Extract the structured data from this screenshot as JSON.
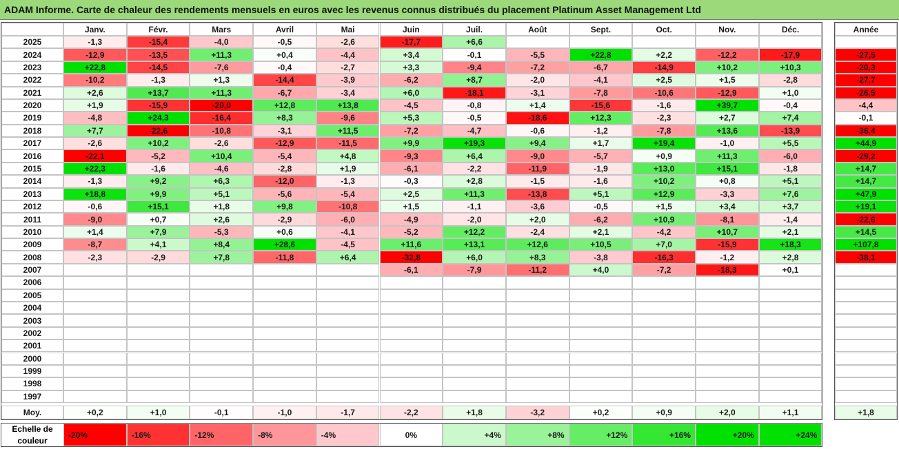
{
  "title": "ADAM Informe. Carte de chaleur des rendements mensuels en euros avec les revenus connus distribués du placement Platinum Asset Management Ltd",
  "colors": {
    "negative_strong": "#ff0000",
    "positive_strong": "#00dd00",
    "title_bg": "#9bd97a"
  },
  "chart_data": {
    "type": "heatmap",
    "columns": [
      "Janv.",
      "Févr.",
      "Mars",
      "Avril",
      "Mai",
      "Juin",
      "Juil.",
      "Août",
      "Sept.",
      "Oct.",
      "Nov.",
      "Déc."
    ],
    "year_column_label": "Année",
    "avg_row_label": "Moy.",
    "rows": [
      {
        "year": "2025",
        "values": [
          "-1,3",
          "-15,4",
          "-4,0",
          "-0,5",
          "-2,6",
          "-17,7",
          "+6,6",
          "",
          "",
          "",
          "",
          ""
        ],
        "annual": ""
      },
      {
        "year": "2024",
        "values": [
          "-12,9",
          "-13,5",
          "+11,3",
          "+0,4",
          "-4,4",
          "+3,4",
          "-0,1",
          "-5,5",
          "+22,8",
          "+2,2",
          "-12,2",
          "-17,9"
        ],
        "annual": "-27,5"
      },
      {
        "year": "2023",
        "values": [
          "+22,8",
          "-14,5",
          "-7,6",
          "-0,4",
          "-2,7",
          "+3,3",
          "-9,4",
          "-7,2",
          "-6,7",
          "-14,9",
          "+10,2",
          "+10,3"
        ],
        "annual": "-20,3"
      },
      {
        "year": "2022",
        "values": [
          "-10,2",
          "-1,3",
          "+1,3",
          "-14,4",
          "-3,9",
          "-6,2",
          "+8,7",
          "-2,0",
          "-4,1",
          "+2,5",
          "+1,5",
          "-2,8"
        ],
        "annual": "-27,7"
      },
      {
        "year": "2021",
        "values": [
          "+2,6",
          "+13,7",
          "+11,3",
          "-6,7",
          "-3,4",
          "+6,0",
          "-18,1",
          "-3,1",
          "-7,8",
          "-10,6",
          "-12,9",
          "+1,0"
        ],
        "annual": "-26,5"
      },
      {
        "year": "2020",
        "values": [
          "+1,9",
          "-15,9",
          "-20,0",
          "+12,8",
          "+13,8",
          "-4,5",
          "-0,8",
          "+1,4",
          "-15,6",
          "-1,6",
          "+39,7",
          "-0,4"
        ],
        "annual": "-4,4"
      },
      {
        "year": "2019",
        "values": [
          "-4,8",
          "+24,3",
          "-16,4",
          "+8,3",
          "-9,6",
          "+5,3",
          "-0,5",
          "-18,6",
          "+12,3",
          "-2,3",
          "+2,7",
          "+7,4"
        ],
        "annual": "-0,1"
      },
      {
        "year": "2018",
        "values": [
          "+7,7",
          "-22,6",
          "-10,8",
          "-3,1",
          "+11,5",
          "-7,2",
          "-4,7",
          "-0,6",
          "-1,2",
          "-7,8",
          "+13,6",
          "-13,9"
        ],
        "annual": "-36,4"
      },
      {
        "year": "2017",
        "values": [
          "-2,6",
          "+10,2",
          "-2,6",
          "-12,9",
          "-11,5",
          "+9,9",
          "+19,3",
          "+9,4",
          "+1,7",
          "+19,4",
          "-1,0",
          "+5,5"
        ],
        "annual": "+44,9"
      },
      {
        "year": "2016",
        "values": [
          "-22,1",
          "-5,2",
          "+10,4",
          "-5,4",
          "+4,8",
          "-9,3",
          "+6,4",
          "-9,0",
          "-5,7",
          "+0,9",
          "+11,3",
          "-6,0"
        ],
        "annual": "-29,2"
      },
      {
        "year": "2015",
        "values": [
          "+22,3",
          "-1,6",
          "-4,6",
          "-2,8",
          "+1,9",
          "-6,1",
          "-2,2",
          "-11,9",
          "-1,9",
          "+13,0",
          "+15,1",
          "-1,8"
        ],
        "annual": "+14,7"
      },
      {
        "year": "2014",
        "values": [
          "-1,3",
          "+9,2",
          "+6,3",
          "-12,0",
          "-1,3",
          "-0,3",
          "+2,8",
          "-1,5",
          "-1,6",
          "+10,2",
          "+0,8",
          "+5,1"
        ],
        "annual": "+14,7"
      },
      {
        "year": "2013",
        "values": [
          "+18,8",
          "+9,9",
          "+5,1",
          "-5,6",
          "-5,4",
          "+2,5",
          "+11,3",
          "-13,8",
          "+5,1",
          "+12,9",
          "-3,3",
          "+7,6"
        ],
        "annual": "+47,9"
      },
      {
        "year": "2012",
        "values": [
          "-0,6",
          "+15,1",
          "+1,8",
          "+9,8",
          "-10,8",
          "+1,5",
          "-1,1",
          "-3,6",
          "-0,5",
          "+1,5",
          "+3,4",
          "+3,7"
        ],
        "annual": "+19,1"
      },
      {
        "year": "2011",
        "values": [
          "-9,0",
          "+0,7",
          "+2,6",
          "-2,9",
          "-6,0",
          "-4,9",
          "-2,0",
          "+2,0",
          "-6,2",
          "+10,9",
          "-8,1",
          "-1,4"
        ],
        "annual": "-22,6"
      },
      {
        "year": "2010",
        "values": [
          "+1,4",
          "+7,9",
          "-5,3",
          "+0,6",
          "-4,1",
          "-5,2",
          "+12,2",
          "-2,4",
          "+2,1",
          "-4,2",
          "+10,7",
          "+2,1"
        ],
        "annual": "+14,5"
      },
      {
        "year": "2009",
        "values": [
          "-8,7",
          "+4,1",
          "+8,4",
          "+28,6",
          "-4,5",
          "+11,6",
          "+13,1",
          "+12,6",
          "+10,5",
          "+7,0",
          "-15,9",
          "+18,3"
        ],
        "annual": "+107,8"
      },
      {
        "year": "2008",
        "values": [
          "-2,3",
          "-2,9",
          "+7,8",
          "-11,8",
          "+6,4",
          "-32,8",
          "+6,0",
          "+8,3",
          "-3,8",
          "-16,3",
          "-1,2",
          "+2,8"
        ],
        "annual": "-38,1"
      },
      {
        "year": "2007",
        "values": [
          "",
          "",
          "",
          "",
          "",
          "-6,1",
          "-7,9",
          "-11,2",
          "+4,0",
          "-7,2",
          "-18,3",
          "+0,1"
        ],
        "annual": ""
      },
      {
        "year": "2006",
        "values": [
          "",
          "",
          "",
          "",
          "",
          "",
          "",
          "",
          "",
          "",
          "",
          ""
        ],
        "annual": ""
      },
      {
        "year": "2005",
        "values": [
          "",
          "",
          "",
          "",
          "",
          "",
          "",
          "",
          "",
          "",
          "",
          ""
        ],
        "annual": ""
      },
      {
        "year": "2004",
        "values": [
          "",
          "",
          "",
          "",
          "",
          "",
          "",
          "",
          "",
          "",
          "",
          ""
        ],
        "annual": ""
      },
      {
        "year": "2003",
        "values": [
          "",
          "",
          "",
          "",
          "",
          "",
          "",
          "",
          "",
          "",
          "",
          ""
        ],
        "annual": ""
      },
      {
        "year": "2002",
        "values": [
          "",
          "",
          "",
          "",
          "",
          "",
          "",
          "",
          "",
          "",
          "",
          ""
        ],
        "annual": ""
      },
      {
        "year": "2001",
        "values": [
          "",
          "",
          "",
          "",
          "",
          "",
          "",
          "",
          "",
          "",
          "",
          ""
        ],
        "annual": ""
      },
      {
        "year": "2000",
        "values": [
          "",
          "",
          "",
          "",
          "",
          "",
          "",
          "",
          "",
          "",
          "",
          ""
        ],
        "annual": ""
      },
      {
        "year": "1999",
        "values": [
          "",
          "",
          "",
          "",
          "",
          "",
          "",
          "",
          "",
          "",
          "",
          ""
        ],
        "annual": ""
      },
      {
        "year": "1998",
        "values": [
          "",
          "",
          "",
          "",
          "",
          "",
          "",
          "",
          "",
          "",
          "",
          ""
        ],
        "annual": ""
      },
      {
        "year": "1997",
        "values": [
          "",
          "",
          "",
          "",
          "",
          "",
          "",
          "",
          "",
          "",
          "",
          ""
        ],
        "annual": ""
      }
    ],
    "averages": [
      "+0,2",
      "+1,0",
      "-0,1",
      "-1,0",
      "-1,7",
      "-2,2",
      "+1,8",
      "-3,2",
      "+0,2",
      "+0,9",
      "+2,0",
      "+1,1"
    ],
    "annual_average": "+1,8",
    "color_scale": {
      "label": "Echelle de couleur",
      "steps": [
        {
          "label": "-20%",
          "value": -20
        },
        {
          "label": "-16%",
          "value": -16
        },
        {
          "label": "-12%",
          "value": -12
        },
        {
          "label": "-8%",
          "value": -8
        },
        {
          "label": "-4%",
          "value": -4
        },
        {
          "label": "0%",
          "value": 0
        },
        {
          "label": "+4%",
          "value": 4
        },
        {
          "label": "+8%",
          "value": 8
        },
        {
          "label": "+12%",
          "value": 12
        },
        {
          "label": "+16%",
          "value": 16
        },
        {
          "label": "+20%",
          "value": 20
        },
        {
          "label": "+24%",
          "value": 24
        }
      ]
    }
  }
}
